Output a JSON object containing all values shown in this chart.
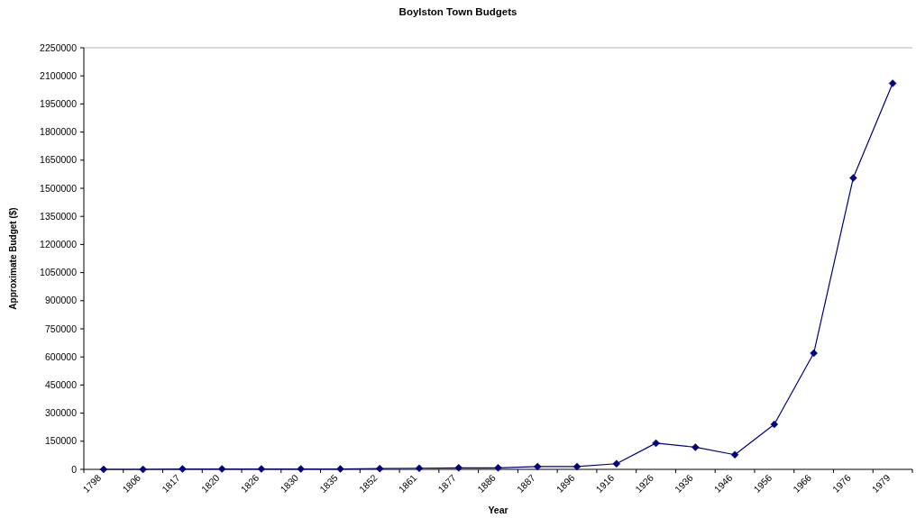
{
  "chart_data": {
    "type": "line",
    "title": "Boylston Town Budgets",
    "xlabel": "Year",
    "ylabel": "Approximate Budget ($)",
    "categories": [
      "1798",
      "1806",
      "1817",
      "1820",
      "1826",
      "1830",
      "1835",
      "1852",
      "1861",
      "1877",
      "1886",
      "1887",
      "1896",
      "1916",
      "1926",
      "1936",
      "1946",
      "1956",
      "1966",
      "1976",
      "1979"
    ],
    "series": [
      {
        "color": "#000080",
        "values": [
          0,
          0,
          2000,
          2000,
          2000,
          2000,
          2000,
          4000,
          6000,
          8000,
          8000,
          15000,
          15000,
          30000,
          140000,
          118000,
          78000,
          240000,
          620000,
          1555000,
          2060000
        ]
      }
    ],
    "ylim": [
      0,
      2250000
    ],
    "yticks": [
      0,
      150000,
      300000,
      450000,
      600000,
      750000,
      900000,
      1050000,
      1200000,
      1350000,
      1500000,
      1650000,
      1800000,
      1950000,
      2100000,
      2250000
    ],
    "marker": "diamond"
  }
}
